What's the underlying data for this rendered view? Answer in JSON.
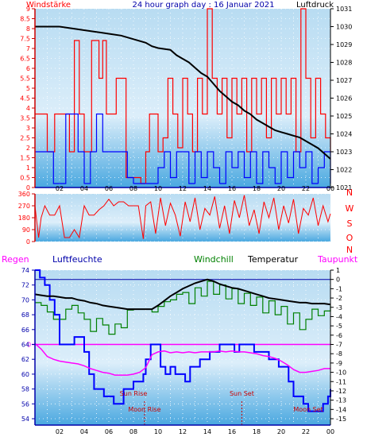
{
  "chart_data": [
    {
      "type": "line",
      "panel": "wind-pressure",
      "title": "24 hour graph day : 16 Januar 2021",
      "left_label": "Windstärke",
      "right_label": "Luftdruck",
      "x_ticks": [
        "02",
        "04",
        "06",
        "08",
        "10",
        "12",
        "14",
        "16",
        "18",
        "20",
        "22",
        "00"
      ],
      "left_ticks": [
        "0",
        "0.5",
        "1",
        "1.5",
        "2",
        "2.5",
        "3",
        "3.5",
        "4",
        "4.5",
        "5",
        "5.5",
        "6",
        "6.5",
        "7",
        "7.5",
        "8",
        "8.5",
        "9"
      ],
      "right_ticks": [
        "1021",
        "1022",
        "1023",
        "1024",
        "1025",
        "1026",
        "1027",
        "1028",
        "1029",
        "1030",
        "1031"
      ],
      "ylim_left": [
        0,
        9
      ],
      "ylim_right": [
        1021,
        1031
      ],
      "colors": {
        "pressure": "#000000",
        "gust": "#ff0000",
        "speed": "#0000ff"
      },
      "series": [
        {
          "key": "pressure",
          "axis": "right",
          "x": [
            0,
            1,
            2,
            3,
            4,
            5,
            6,
            7,
            8,
            9,
            9.5,
            10,
            10.5,
            11,
            11.5,
            12,
            12.5,
            13,
            13.5,
            14,
            14.5,
            15,
            15.5,
            16,
            16.5,
            17,
            17.5,
            18,
            18.5,
            19,
            19.5,
            20,
            20.5,
            21,
            21.5,
            22,
            22.5,
            23,
            23.5,
            24
          ],
          "y": [
            1030.0,
            1030.0,
            1030.0,
            1029.9,
            1029.8,
            1029.7,
            1029.6,
            1029.5,
            1029.3,
            1029.1,
            1028.9,
            1028.8,
            1028.75,
            1028.7,
            1028.4,
            1028.2,
            1028.0,
            1027.7,
            1027.4,
            1027.2,
            1026.8,
            1026.4,
            1026.1,
            1025.8,
            1025.6,
            1025.3,
            1025.1,
            1024.8,
            1024.6,
            1024.4,
            1024.2,
            1024.1,
            1024.0,
            1023.9,
            1023.8,
            1023.6,
            1023.4,
            1023.2,
            1022.9,
            1022.6
          ]
        },
        {
          "key": "gust",
          "axis": "left",
          "x": [
            0,
            0.5,
            1,
            1.6,
            2.2,
            2.8,
            3.2,
            3.6,
            4,
            4.3,
            4.6,
            4.9,
            5.2,
            5.5,
            5.8,
            6.2,
            6.6,
            7,
            7.4,
            7.8,
            8.2,
            8.6,
            9,
            9.3,
            9.6,
            10,
            10.4,
            10.8,
            11.2,
            11.6,
            12,
            12.4,
            12.8,
            13.2,
            13.6,
            14,
            14.4,
            14.8,
            15.2,
            15.6,
            16,
            16.4,
            16.8,
            17.2,
            17.6,
            18,
            18.4,
            18.8,
            19.2,
            19.6,
            20,
            20.4,
            20.8,
            21.2,
            21.6,
            22,
            22.4,
            22.8,
            23.2,
            23.6,
            24
          ],
          "y": [
            3.7,
            3.7,
            1.8,
            3.7,
            3.7,
            1.8,
            7.4,
            3.7,
            1.8,
            1.8,
            7.4,
            7.4,
            5.5,
            7.4,
            3.7,
            3.7,
            5.5,
            5.5,
            0.5,
            0.5,
            0.5,
            0.2,
            1.8,
            3.7,
            3.7,
            1.8,
            2.5,
            5.5,
            3.7,
            2.0,
            5.5,
            3.7,
            1.8,
            5.5,
            3.7,
            9.0,
            5.5,
            3.7,
            5.5,
            2.5,
            5.5,
            3.7,
            5.5,
            1.8,
            5.5,
            3.7,
            5.5,
            2.5,
            5.5,
            3.7,
            5.5,
            3.7,
            5.5,
            1.8,
            9.0,
            5.5,
            2.5,
            5.5,
            3.7,
            2.5,
            1.8
          ]
        },
        {
          "key": "speed",
          "axis": "left",
          "x": [
            0,
            1,
            1.5,
            2,
            2.5,
            3,
            3.5,
            4,
            4.5,
            5,
            5.5,
            6,
            6.5,
            7,
            7.5,
            8,
            8.5,
            9,
            9.5,
            10,
            10.5,
            11,
            11.5,
            12,
            12.5,
            13,
            13.5,
            14,
            14.5,
            15,
            15.5,
            16,
            16.5,
            17,
            17.5,
            18,
            18.5,
            19,
            19.5,
            20,
            20.5,
            21,
            21.5,
            22,
            22.5,
            23,
            23.5,
            24
          ],
          "y": [
            1.8,
            1.8,
            0.2,
            0.2,
            3.7,
            3.7,
            1.8,
            0.2,
            1.8,
            3.7,
            1.8,
            1.8,
            1.8,
            1.8,
            0.5,
            0.2,
            0.2,
            0.2,
            0.2,
            1.0,
            1.8,
            0.5,
            1.8,
            1.8,
            0.2,
            1.8,
            0.5,
            1.8,
            1.0,
            0.2,
            1.8,
            1.0,
            1.8,
            0.5,
            1.8,
            0.2,
            1.8,
            1.0,
            0.2,
            1.8,
            0.5,
            1.8,
            1.0,
            1.8,
            0.2,
            1.0,
            1.8,
            0.2
          ]
        }
      ]
    },
    {
      "type": "line",
      "panel": "wind-direction",
      "left_ticks": [
        "0",
        "90",
        "180",
        "270",
        "360"
      ],
      "right_ticks": [
        "N",
        "W",
        "S",
        "O",
        "N"
      ],
      "ylim": [
        0,
        360
      ],
      "colors": {
        "direction": "#ff0000"
      },
      "series": [
        {
          "key": "direction",
          "x": [
            0,
            0.3,
            0.5,
            0.8,
            1.2,
            1.6,
            2,
            2.4,
            2.8,
            3.2,
            3.6,
            4,
            4.4,
            4.8,
            5.2,
            5.6,
            6,
            6.4,
            6.8,
            7.2,
            7.6,
            8,
            8.4,
            8.8,
            9,
            9.4,
            9.8,
            10.2,
            10.6,
            11,
            11.4,
            11.8,
            12.2,
            12.6,
            13,
            13.4,
            13.8,
            14.2,
            14.6,
            15,
            15.4,
            15.8,
            16.2,
            16.6,
            17,
            17.4,
            17.8,
            18.2,
            18.6,
            19,
            19.4,
            19.8,
            20.2,
            20.6,
            21,
            21.4,
            21.8,
            22.2,
            22.6,
            23,
            23.4,
            23.8,
            24
          ],
          "y": [
            270,
            30,
            180,
            270,
            200,
            200,
            270,
            30,
            30,
            90,
            30,
            270,
            200,
            200,
            240,
            270,
            320,
            270,
            300,
            300,
            270,
            270,
            270,
            20,
            270,
            300,
            60,
            330,
            120,
            290,
            200,
            40,
            300,
            150,
            330,
            90,
            250,
            200,
            340,
            100,
            270,
            60,
            310,
            180,
            350,
            120,
            240,
            60,
            300,
            180,
            330,
            90,
            270,
            140,
            320,
            60,
            250,
            200,
            330,
            120,
            270,
            150,
            210
          ]
        }
      ]
    },
    {
      "type": "line",
      "panel": "temp-humidity",
      "labels": {
        "rain": "Regen",
        "humidity": "Luftfeuchte",
        "windchill": "Windchill",
        "temperature": "Temperatur",
        "dewpoint": "Taupunkt"
      },
      "left_ticks": [
        "54",
        "56",
        "58",
        "60",
        "62",
        "64",
        "66",
        "68",
        "70",
        "72",
        "74"
      ],
      "right_ticks": [
        "-15",
        "-14",
        "-13",
        "-12",
        "-11",
        "-10",
        "-9",
        "-8",
        "-7",
        "-6",
        "-5",
        "-4",
        "-3",
        "-2",
        "-1",
        "0",
        "1"
      ],
      "x_ticks": [
        "02",
        "04",
        "06",
        "08",
        "10",
        "12",
        "14",
        "16",
        "18",
        "20",
        "22",
        "00"
      ],
      "rain_label": "0",
      "ylim_left": [
        54,
        74
      ],
      "ylim_right": [
        -15,
        1
      ],
      "colors": {
        "humidity": "#0000ff",
        "temperature": "#000000",
        "windchill": "#008000",
        "dewpoint": "#ff00ff",
        "rain_line": "#ff00ff",
        "zero_line": "#0000aa",
        "markers": "#cc0000"
      },
      "annotations": [
        {
          "text": "Sun Rise",
          "x": 8.0
        },
        {
          "text": "Moon Rise",
          "x": 8.9
        },
        {
          "text": "Sun Set",
          "x": 16.8
        },
        {
          "text": "Moon Set",
          "x": 22.2
        }
      ],
      "marker_lines_x": [
        8.9,
        16.8
      ],
      "series": [
        {
          "key": "humidity",
          "axis": "left",
          "x": [
            0,
            0.4,
            0.8,
            1.2,
            1.6,
            2,
            2.4,
            2.8,
            3.2,
            3.6,
            4,
            4.4,
            4.8,
            5.2,
            5.6,
            6,
            6.4,
            6.8,
            7.2,
            7.6,
            8,
            8.4,
            8.8,
            9,
            9.4,
            9.8,
            10.2,
            10.6,
            11,
            11.4,
            11.8,
            12.2,
            12.6,
            13,
            13.4,
            13.8,
            14.2,
            14.6,
            15,
            15.4,
            15.8,
            16.2,
            16.6,
            17,
            17.4,
            17.8,
            18.2,
            18.6,
            19,
            19.4,
            19.8,
            20.2,
            20.6,
            21,
            21.4,
            21.8,
            22.2,
            22.6,
            23,
            23.4,
            23.8,
            24
          ],
          "y": [
            74,
            73,
            72,
            70,
            68,
            64,
            64,
            64,
            65,
            65,
            63,
            60,
            58,
            58,
            57,
            57,
            56,
            56,
            58,
            58,
            59,
            59,
            60,
            62,
            64,
            64,
            61,
            60,
            61,
            60,
            60,
            59,
            61,
            61,
            62,
            62,
            63,
            63,
            64,
            64,
            64,
            63,
            64,
            64,
            64,
            63,
            63,
            63,
            62,
            62,
            61,
            61,
            59,
            57,
            57,
            56,
            55,
            55,
            55,
            56,
            57,
            58
          ]
        },
        {
          "key": "temperature",
          "axis": "right",
          "x": [
            0,
            0.5,
            1,
            1.5,
            2,
            2.5,
            3,
            3.5,
            4,
            4.5,
            5,
            5.5,
            6,
            6.5,
            7,
            7.5,
            8,
            8.5,
            9,
            9.5,
            10,
            10.5,
            11,
            11.5,
            12,
            12.5,
            13,
            13.5,
            14,
            14.5,
            15,
            15.5,
            16,
            16.5,
            17,
            17.5,
            18,
            18.5,
            19,
            19.5,
            20,
            20.5,
            21,
            21.5,
            22,
            22.5,
            23,
            23.5,
            24
          ],
          "y": [
            -1.6,
            -1.7,
            -1.8,
            -1.8,
            -1.9,
            -2.0,
            -2.0,
            -2.2,
            -2.3,
            -2.5,
            -2.6,
            -2.8,
            -2.9,
            -3.0,
            -3.1,
            -3.2,
            -3.2,
            -3.2,
            -3.2,
            -3.2,
            -2.8,
            -2.3,
            -1.8,
            -1.4,
            -1.0,
            -0.7,
            -0.4,
            -0.2,
            0.0,
            -0.2,
            -0.5,
            -0.7,
            -0.9,
            -1.0,
            -1.2,
            -1.4,
            -1.6,
            -1.8,
            -2.0,
            -2.1,
            -2.2,
            -2.3,
            -2.4,
            -2.5,
            -2.5,
            -2.6,
            -2.6,
            -2.6,
            -2.7
          ]
        },
        {
          "key": "windchill",
          "axis": "right",
          "x": [
            0,
            0.5,
            1,
            1.5,
            2,
            2.5,
            3,
            3.5,
            4,
            4.5,
            5,
            5.5,
            6,
            6.5,
            7,
            7.5,
            8,
            8.5,
            9,
            9.5,
            10,
            10.5,
            11,
            11.5,
            12,
            12.5,
            13,
            13.5,
            14,
            14.5,
            15,
            15.5,
            16,
            16.5,
            17,
            17.5,
            18,
            18.5,
            19,
            19.5,
            20,
            20.5,
            21,
            21.5,
            22,
            22.5,
            23,
            23.5,
            24
          ],
          "y": [
            -2.5,
            -2.8,
            -3.5,
            -4.3,
            -4.3,
            -3.2,
            -2.8,
            -3.6,
            -4.3,
            -5.6,
            -4.2,
            -4.9,
            -5.9,
            -4.8,
            -5.2,
            -3.3,
            -3.2,
            -3.2,
            -3.2,
            -3.5,
            -2.9,
            -2.4,
            -2.2,
            -1.6,
            -1.4,
            -2.6,
            -0.9,
            -1.8,
            -0.2,
            -1.6,
            -0.6,
            -2.1,
            -1.0,
            -2.6,
            -1.5,
            -2.8,
            -1.9,
            -3.6,
            -2.3,
            -3.8,
            -2.9,
            -4.8,
            -3.6,
            -5.4,
            -4.3,
            -3.2,
            -3.9,
            -3.4,
            -2.8
          ]
        },
        {
          "key": "dewpoint",
          "axis": "right",
          "x": [
            0,
            0.5,
            1,
            1.5,
            2,
            2.5,
            3,
            3.5,
            4,
            4.5,
            5,
            5.5,
            6,
            6.5,
            7,
            7.5,
            8,
            8.5,
            9,
            9.5,
            10,
            10.5,
            11,
            11.5,
            12,
            12.5,
            13,
            13.5,
            14,
            14.5,
            15,
            15.5,
            16,
            16.5,
            17,
            17.5,
            18,
            18.5,
            19,
            19.5,
            20,
            20.5,
            21,
            21.5,
            22,
            22.5,
            23,
            23.5,
            24
          ],
          "y": [
            -6.9,
            -7.5,
            -8.3,
            -8.6,
            -8.8,
            -8.9,
            -9.0,
            -9.1,
            -9.3,
            -9.6,
            -9.8,
            -10.0,
            -10.1,
            -10.3,
            -10.3,
            -10.3,
            -10.2,
            -10.0,
            -9.5,
            -8.1,
            -7.8,
            -7.7,
            -7.9,
            -7.8,
            -7.9,
            -7.8,
            -7.9,
            -7.8,
            -7.8,
            -7.8,
            -7.7,
            -7.8,
            -7.7,
            -7.8,
            -7.8,
            -7.9,
            -8.0,
            -8.2,
            -8.3,
            -8.5,
            -8.8,
            -9.2,
            -9.7,
            -10.0,
            -10.0,
            -9.9,
            -9.8,
            -9.6,
            -9.6
          ]
        }
      ]
    }
  ]
}
